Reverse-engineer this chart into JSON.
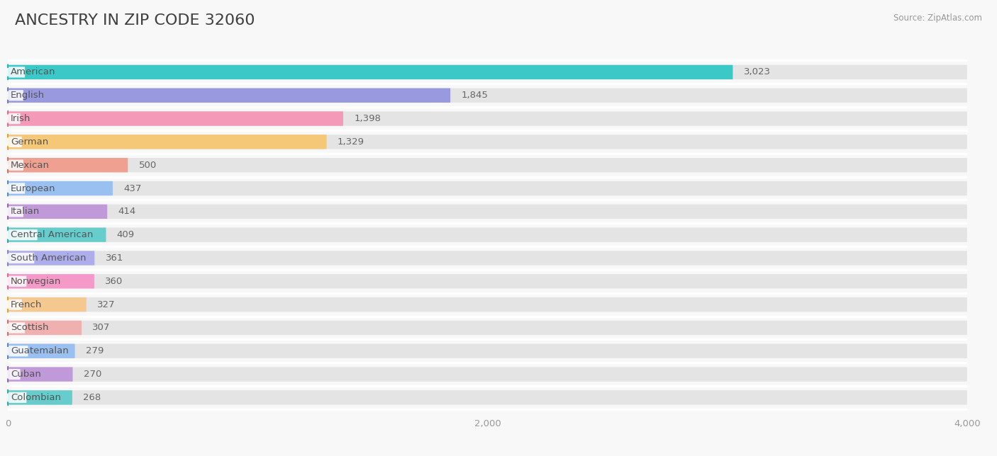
{
  "title": "ANCESTRY IN ZIP CODE 32060",
  "source": "Source: ZipAtlas.com",
  "categories": [
    "American",
    "English",
    "Irish",
    "German",
    "Mexican",
    "European",
    "Italian",
    "Central American",
    "South American",
    "Norwegian",
    "French",
    "Scottish",
    "Guatemalan",
    "Cuban",
    "Colombian"
  ],
  "values": [
    3023,
    1845,
    1398,
    1329,
    500,
    437,
    414,
    409,
    361,
    360,
    327,
    307,
    279,
    270,
    268
  ],
  "colors": [
    "#3dc8c8",
    "#9999e0",
    "#f599b8",
    "#f5c878",
    "#f0a090",
    "#99c0f0",
    "#c099d8",
    "#66cccc",
    "#adadeb",
    "#f599c8",
    "#f5c890",
    "#f0b0b0",
    "#99c0f0",
    "#c099d8",
    "#66cccc"
  ],
  "dot_colors": [
    "#2ab0b0",
    "#7070cc",
    "#e06090",
    "#e0a020",
    "#d06858",
    "#5080c8",
    "#9060b8",
    "#30a0a0",
    "#8080cc",
    "#e06090",
    "#e0a020",
    "#d06858",
    "#5080c8",
    "#9060b8",
    "#30a0a0"
  ],
  "xlim": [
    0,
    4000
  ],
  "xticks": [
    0,
    2000,
    4000
  ],
  "background_color": "#f8f8f8",
  "bar_bg_color": "#e4e4e4",
  "title_fontsize": 16,
  "label_fontsize": 9.5,
  "value_fontsize": 9.5
}
